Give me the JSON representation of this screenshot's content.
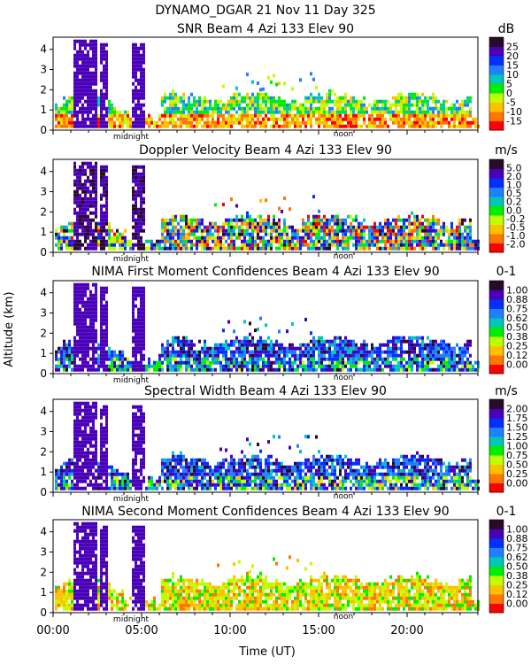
{
  "figure": {
    "title": "DYNAMO_DGAR  21 Nov 11 Day 325",
    "xlabel": "Time (UT)",
    "ylabel": "Altitude (km)",
    "day_markers": [
      "midnight",
      "noon"
    ]
  },
  "chart_data": [
    {
      "type": "heatmap",
      "title": "SNR Beam 4 Azi 133 Elev 90",
      "unit": "dB",
      "x_ticks": [
        "00:00",
        "05:00",
        "10:00",
        "15:00",
        "20:00"
      ],
      "x_range_hours": [
        0,
        24
      ],
      "y_ticks": [
        "0",
        "1",
        "2",
        "3",
        "4"
      ],
      "y_range_km": [
        0,
        4.6
      ],
      "colorbar_labels": [
        "25",
        "20",
        "15",
        "10",
        "5",
        "0",
        "-5",
        "-10",
        "-15"
      ],
      "colorbar_colors": [
        "#ff0000",
        "#ff7700",
        "#ffc000",
        "#c0ff00",
        "#00ee00",
        "#00c8b4",
        "#2080ff",
        "#0030ff",
        "#4a00b8",
        "#2a0a2a"
      ],
      "profile": "snr"
    },
    {
      "type": "heatmap",
      "title": "Doppler Velocity Beam 4 Azi 133 Elev 90",
      "unit": "m/s",
      "x_ticks": [
        "00:00",
        "05:00",
        "10:00",
        "15:00",
        "20:00"
      ],
      "x_range_hours": [
        0,
        24
      ],
      "y_ticks": [
        "0",
        "1",
        "2",
        "3",
        "4"
      ],
      "y_range_km": [
        0,
        4.6
      ],
      "colorbar_labels": [
        "5.0",
        "2.0",
        "1.0",
        "0.5",
        "0.2",
        "0.0",
        "-0.2",
        "-0.5",
        "-1.0",
        "-2.0"
      ],
      "colorbar_colors": [
        "#ff0000",
        "#ff7700",
        "#ffc000",
        "#c0ff00",
        "#00ee00",
        "#00c8b4",
        "#2080ff",
        "#0030ff",
        "#4a00b8",
        "#2a0a2a"
      ],
      "profile": "doppler"
    },
    {
      "type": "heatmap",
      "title": "NIMA First Moment Confidences Beam 4 Azi 133 Elev 90",
      "unit": "0-1",
      "x_ticks": [
        "00:00",
        "05:00",
        "10:00",
        "15:00",
        "20:00"
      ],
      "x_range_hours": [
        0,
        24
      ],
      "y_ticks": [
        "0",
        "1",
        "2",
        "3",
        "4"
      ],
      "y_range_km": [
        0,
        4.6
      ],
      "colorbar_labels": [
        "1.00",
        "0.88",
        "0.75",
        "0.62",
        "0.50",
        "0.38",
        "0.25",
        "0.12",
        "0.00"
      ],
      "colorbar_colors": [
        "#ff0000",
        "#ff7700",
        "#ffc000",
        "#c0ff00",
        "#00ee00",
        "#00c8b4",
        "#2080ff",
        "#0030ff",
        "#4a00b8",
        "#2a0a2a"
      ],
      "profile": "conf1"
    },
    {
      "type": "heatmap",
      "title": "Spectral Width Beam 4 Azi 133 Elev 90",
      "unit": "m/s",
      "x_ticks": [
        "00:00",
        "05:00",
        "10:00",
        "15:00",
        "20:00"
      ],
      "x_range_hours": [
        0,
        24
      ],
      "y_ticks": [
        "0",
        "1",
        "2",
        "3",
        "4"
      ],
      "y_range_km": [
        0,
        4.6
      ],
      "colorbar_labels": [
        "2.00",
        "1.75",
        "1.50",
        "1.25",
        "1.00",
        "0.75",
        "0.50",
        "0.25",
        "0.00"
      ],
      "colorbar_colors": [
        "#ff0000",
        "#ff7700",
        "#ffc000",
        "#c0ff00",
        "#00ee00",
        "#00c8b4",
        "#2080ff",
        "#0030ff",
        "#4a00b8",
        "#2a0a2a"
      ],
      "profile": "width"
    },
    {
      "type": "heatmap",
      "title": "NIMA Second Moment Confidences Beam 4 Azi 133 Elev 90",
      "unit": "0-1",
      "x_ticks": [
        "00:00",
        "05:00",
        "10:00",
        "15:00",
        "20:00"
      ],
      "x_range_hours": [
        0,
        24
      ],
      "y_ticks": [
        "0",
        "1",
        "2",
        "3",
        "4"
      ],
      "y_range_km": [
        0,
        4.6
      ],
      "colorbar_labels": [
        "1.00",
        "0.88",
        "0.75",
        "0.62",
        "0.50",
        "0.38",
        "0.25",
        "0.12",
        "0.00"
      ],
      "colorbar_colors": [
        "#ff0000",
        "#ff7700",
        "#ffc000",
        "#c0ff00",
        "#00ee00",
        "#00c8b4",
        "#2080ff",
        "#0030ff",
        "#4a00b8",
        "#2a0a2a"
      ],
      "profile": "conf2"
    }
  ]
}
